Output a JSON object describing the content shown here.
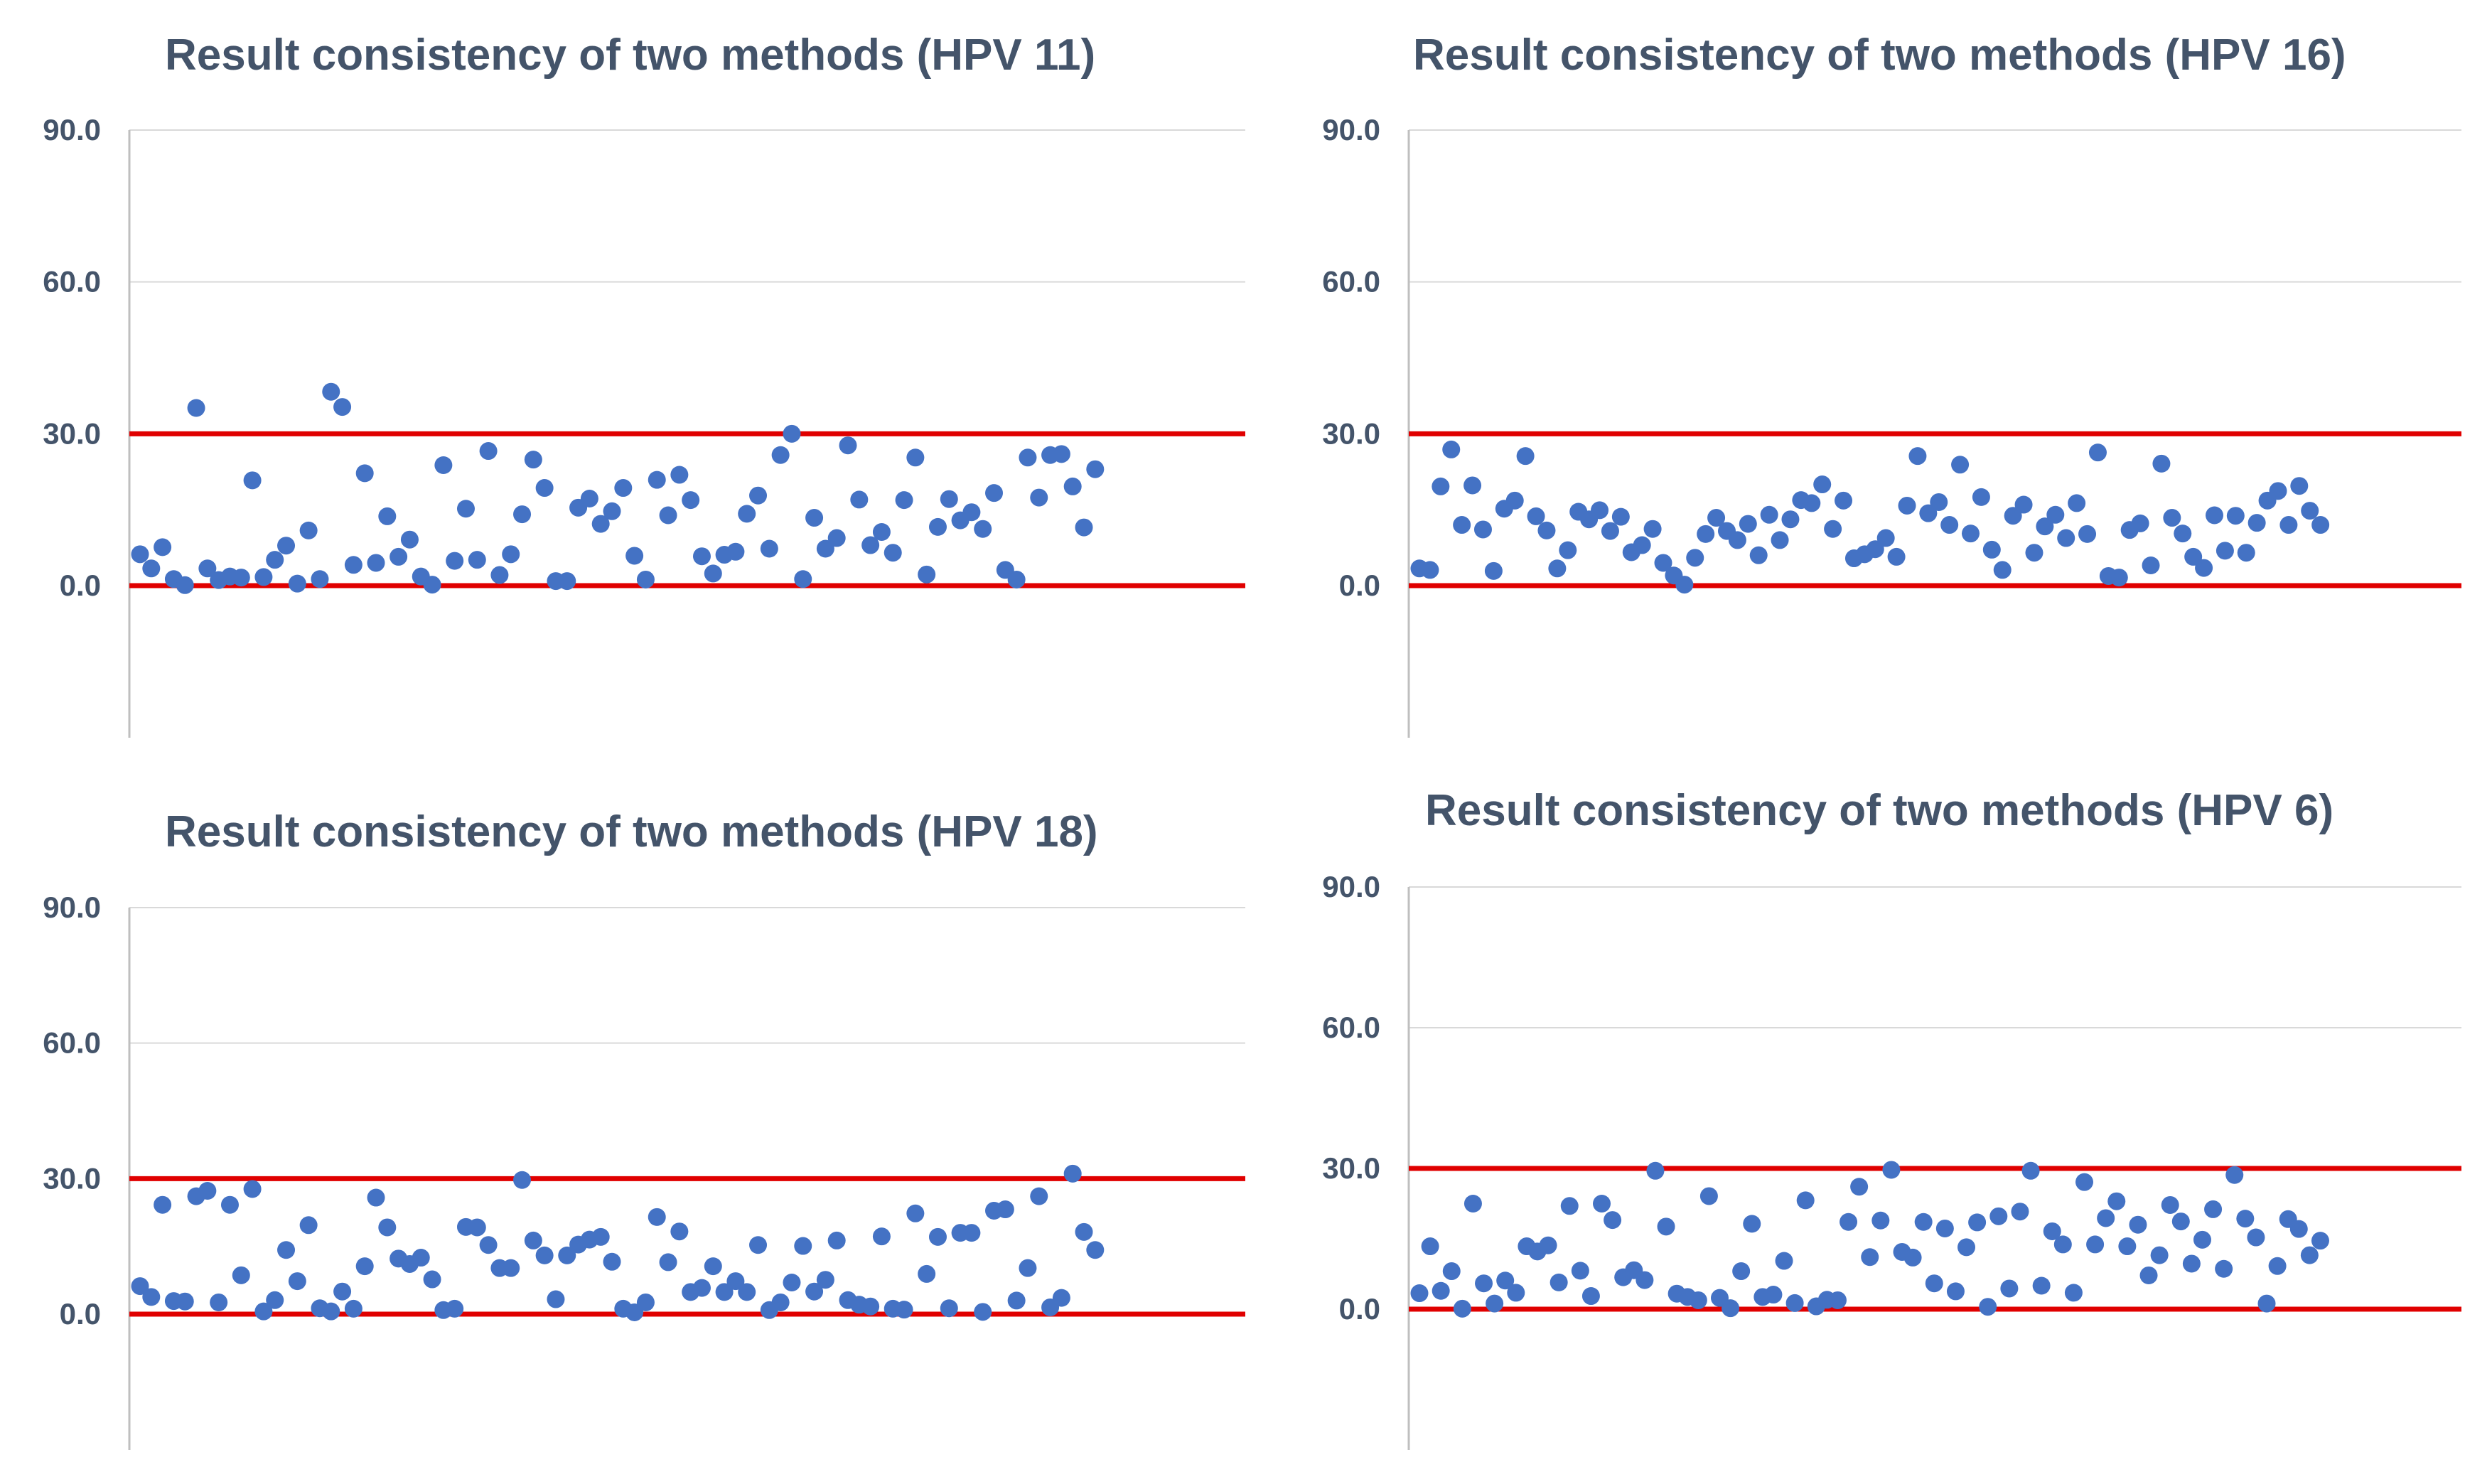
{
  "chart_data": [
    {
      "type": "scatter",
      "title": "Result consistency of two methods (HPV 11)",
      "xlabel": "",
      "ylabel": "",
      "ylim": [
        -30,
        90
      ],
      "yticks": [
        "90.0",
        "60.0",
        "30.0",
        "0.0"
      ],
      "grid": true,
      "reference_lines": [
        30,
        0
      ],
      "colors": {
        "points": "#4472c4",
        "reference": "#e00000",
        "grid": "#d9d9d9",
        "axis": "#bfbfbf"
      },
      "values": [
        6.2,
        3.4,
        7.6,
        1.3,
        0.1,
        35.1,
        3.4,
        1.1,
        1.8,
        1.6,
        20.8,
        1.7,
        5.1,
        7.9,
        0.4,
        10.9,
        1.3,
        38.3,
        35.3,
        4.1,
        22.2,
        4.5,
        13.7,
        5.7,
        9.1,
        1.8,
        0.2,
        23.8,
        4.9,
        15.2,
        5.1,
        26.6,
        2.1,
        6.2,
        14.1,
        24.9,
        19.3,
        0.9,
        0.9,
        15.4,
        17.2,
        12.2,
        14.7,
        19.3,
        5.9,
        1.2,
        20.9,
        13.9,
        21.9,
        16.9,
        5.8,
        2.4,
        6.1,
        6.7,
        14.2,
        17.8,
        7.3,
        25.8,
        30.0,
        1.3,
        13.4,
        7.3,
        9.4,
        27.7,
        17.0,
        8.0,
        10.6,
        6.5,
        16.9,
        25.3,
        2.2,
        11.6,
        17.1,
        12.9,
        14.5,
        11.2,
        18.3,
        3.1,
        1.2,
        25.3,
        17.4,
        25.8,
        26.0,
        19.6,
        11.5,
        23.0
      ]
    },
    {
      "type": "scatter",
      "title": "Result consistency of two methods (HPV 16)",
      "xlabel": "",
      "ylabel": "",
      "ylim": [
        -30,
        90
      ],
      "yticks": [
        "90.0",
        "60.0",
        "30.0",
        "0.0"
      ],
      "grid": true,
      "reference_lines": [
        30,
        0
      ],
      "colors": {
        "points": "#4472c4",
        "reference": "#e00000",
        "grid": "#d9d9d9",
        "axis": "#bfbfbf"
      },
      "values": [
        3.4,
        3.1,
        19.6,
        26.9,
        12.0,
        19.8,
        11.1,
        2.9,
        15.2,
        16.8,
        25.6,
        13.7,
        10.9,
        3.4,
        7.0,
        14.6,
        13.1,
        14.9,
        10.8,
        13.6,
        6.6,
        8.0,
        11.2,
        4.5,
        2.0,
        0.2,
        5.5,
        10.2,
        13.4,
        10.8,
        9.0,
        12.2,
        6.0,
        14.0,
        9.0,
        13.1,
        16.9,
        16.3,
        20.0,
        11.2,
        16.8,
        5.4,
        6.2,
        7.2,
        9.4,
        5.7,
        15.8,
        25.6,
        14.3,
        16.5,
        12.0,
        23.9,
        10.3,
        17.5,
        7.1,
        3.1,
        13.8,
        16.0,
        6.5,
        11.7,
        14.0,
        9.4,
        16.3,
        10.2,
        26.3,
        1.9,
        1.6,
        11.0,
        12.3,
        4.0,
        24.1,
        13.4,
        10.3,
        5.7,
        3.5,
        13.9,
        6.9,
        13.8,
        6.5,
        12.4,
        16.8,
        18.7,
        12.0,
        19.7,
        14.8,
        12.0
      ]
    },
    {
      "type": "scatter",
      "title": "Result consistency of two methods (HPV 18)",
      "xlabel": "",
      "ylabel": "",
      "ylim": [
        -30,
        90
      ],
      "yticks": [
        "90.0",
        "60.0",
        "30.0",
        "0.0"
      ],
      "grid": true,
      "reference_lines": [
        30,
        0
      ],
      "colors": {
        "points": "#4472c4",
        "reference": "#e00000",
        "grid": "#d9d9d9",
        "axis": "#bfbfbf"
      },
      "values": [
        6.2,
        3.8,
        24.2,
        2.9,
        2.8,
        26.1,
        27.3,
        2.6,
        24.2,
        8.6,
        27.7,
        0.6,
        3.1,
        14.2,
        7.3,
        19.7,
        1.3,
        0.6,
        5.0,
        1.2,
        10.6,
        25.8,
        19.2,
        12.3,
        11.1,
        12.5,
        7.7,
        0.9,
        1.2,
        19.3,
        19.2,
        15.3,
        10.2,
        10.2,
        29.7,
        16.3,
        13.0,
        3.3,
        13.0,
        15.4,
        16.5,
        17.1,
        11.6,
        1.2,
        0.4,
        2.6,
        21.5,
        11.5,
        18.3,
        4.9,
        5.8,
        10.6,
        4.9,
        7.3,
        4.9,
        15.3,
        0.9,
        2.6,
        7.0,
        15.1,
        5.0,
        7.6,
        16.3,
        3.1,
        2.1,
        1.7,
        17.2,
        1.2,
        1.0,
        22.3,
        8.9,
        17.1,
        1.3,
        18.0,
        18.0,
        0.5,
        22.9,
        23.2,
        3.0,
        10.2,
        26.1,
        1.5,
        3.6,
        31.1,
        18.2,
        14.2
      ]
    },
    {
      "type": "scatter",
      "title": "Result consistency of two methods (HPV 6)",
      "xlabel": "",
      "ylabel": "",
      "ylim": [
        -30,
        90
      ],
      "yticks": [
        "90.0",
        "60.0",
        "30.0",
        "0.0"
      ],
      "grid": true,
      "reference_lines": [
        30,
        0
      ],
      "colors": {
        "points": "#4472c4",
        "reference": "#e00000",
        "grid": "#d9d9d9",
        "axis": "#bfbfbf"
      },
      "values": [
        3.4,
        13.4,
        3.9,
        8.1,
        0.1,
        22.5,
        5.5,
        1.2,
        6.1,
        3.5,
        13.4,
        12.3,
        13.6,
        5.7,
        22.0,
        8.2,
        2.8,
        22.5,
        19.0,
        6.8,
        8.3,
        6.2,
        29.5,
        17.6,
        3.3,
        2.6,
        1.9,
        24.1,
        2.4,
        0.2,
        8.1,
        18.2,
        2.6,
        3.1,
        10.3,
        1.3,
        23.2,
        0.6,
        2.0,
        1.9,
        18.6,
        26.1,
        11.1,
        18.9,
        29.7,
        12.2,
        11.0,
        18.6,
        5.5,
        17.2,
        3.8,
        13.2,
        18.5,
        0.5,
        19.8,
        4.4,
        20.8,
        29.5,
        5.0,
        16.6,
        13.8,
        3.5,
        27.1,
        13.8,
        19.4,
        23.0,
        13.4,
        18.0,
        7.2,
        11.5,
        22.2,
        18.7,
        9.7,
        14.8,
        21.3,
        8.6,
        28.6,
        19.3,
        15.3,
        1.2,
        9.2,
        19.2,
        17.1,
        11.5,
        14.6
      ]
    }
  ]
}
